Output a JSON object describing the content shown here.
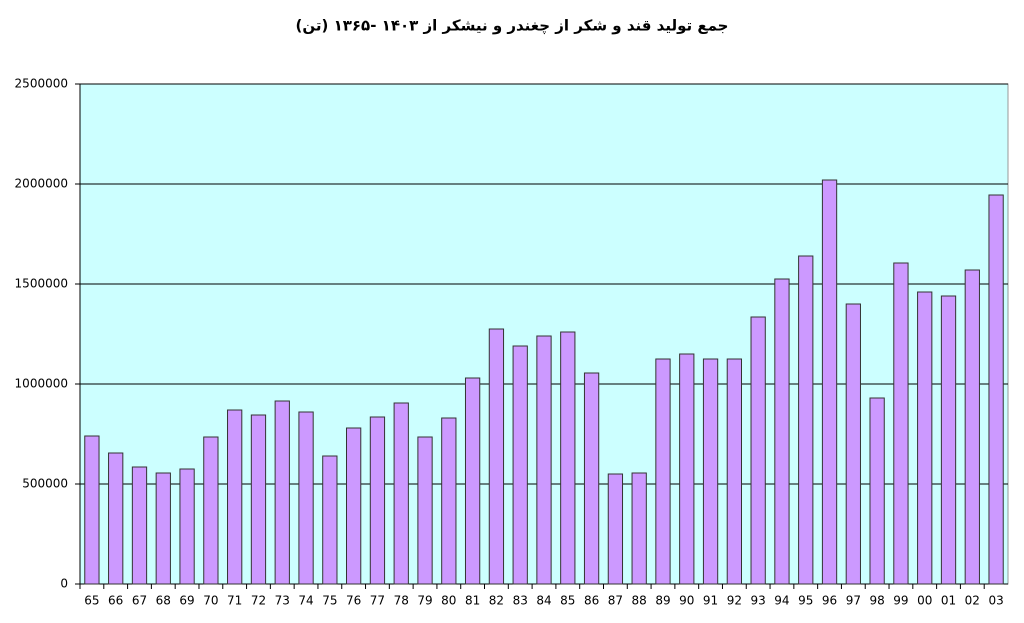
{
  "chart_data": {
    "type": "bar",
    "title": "جمع تولید قند و شکر از چغندر و نیشکر از ۱۴۰۳ -۱۳۶۵ (تن)",
    "categories": [
      "65",
      "66",
      "67",
      "68",
      "69",
      "70",
      "71",
      "72",
      "73",
      "74",
      "75",
      "76",
      "77",
      "78",
      "79",
      "80",
      "81",
      "82",
      "83",
      "84",
      "85",
      "86",
      "87",
      "88",
      "89",
      "90",
      "91",
      "92",
      "93",
      "94",
      "95",
      "96",
      "97",
      "98",
      "99",
      "00",
      "01",
      "02",
      "03"
    ],
    "values": [
      740000,
      655000,
      585000,
      555000,
      575000,
      735000,
      870000,
      845000,
      915000,
      860000,
      640000,
      780000,
      835000,
      905000,
      735000,
      830000,
      1030000,
      1275000,
      1190000,
      1240000,
      1260000,
      1055000,
      550000,
      555000,
      1125000,
      1150000,
      1125000,
      1125000,
      1335000,
      1525000,
      1640000,
      2020000,
      1400000,
      930000,
      1605000,
      1460000,
      1440000,
      1570000,
      1945000
    ],
    "color": "#cc99ff",
    "background": "#ccffff",
    "ylim": [
      0,
      2500000
    ],
    "yticks": [
      0,
      500000,
      1000000,
      1500000,
      2000000,
      2500000
    ],
    "grid": true
  }
}
